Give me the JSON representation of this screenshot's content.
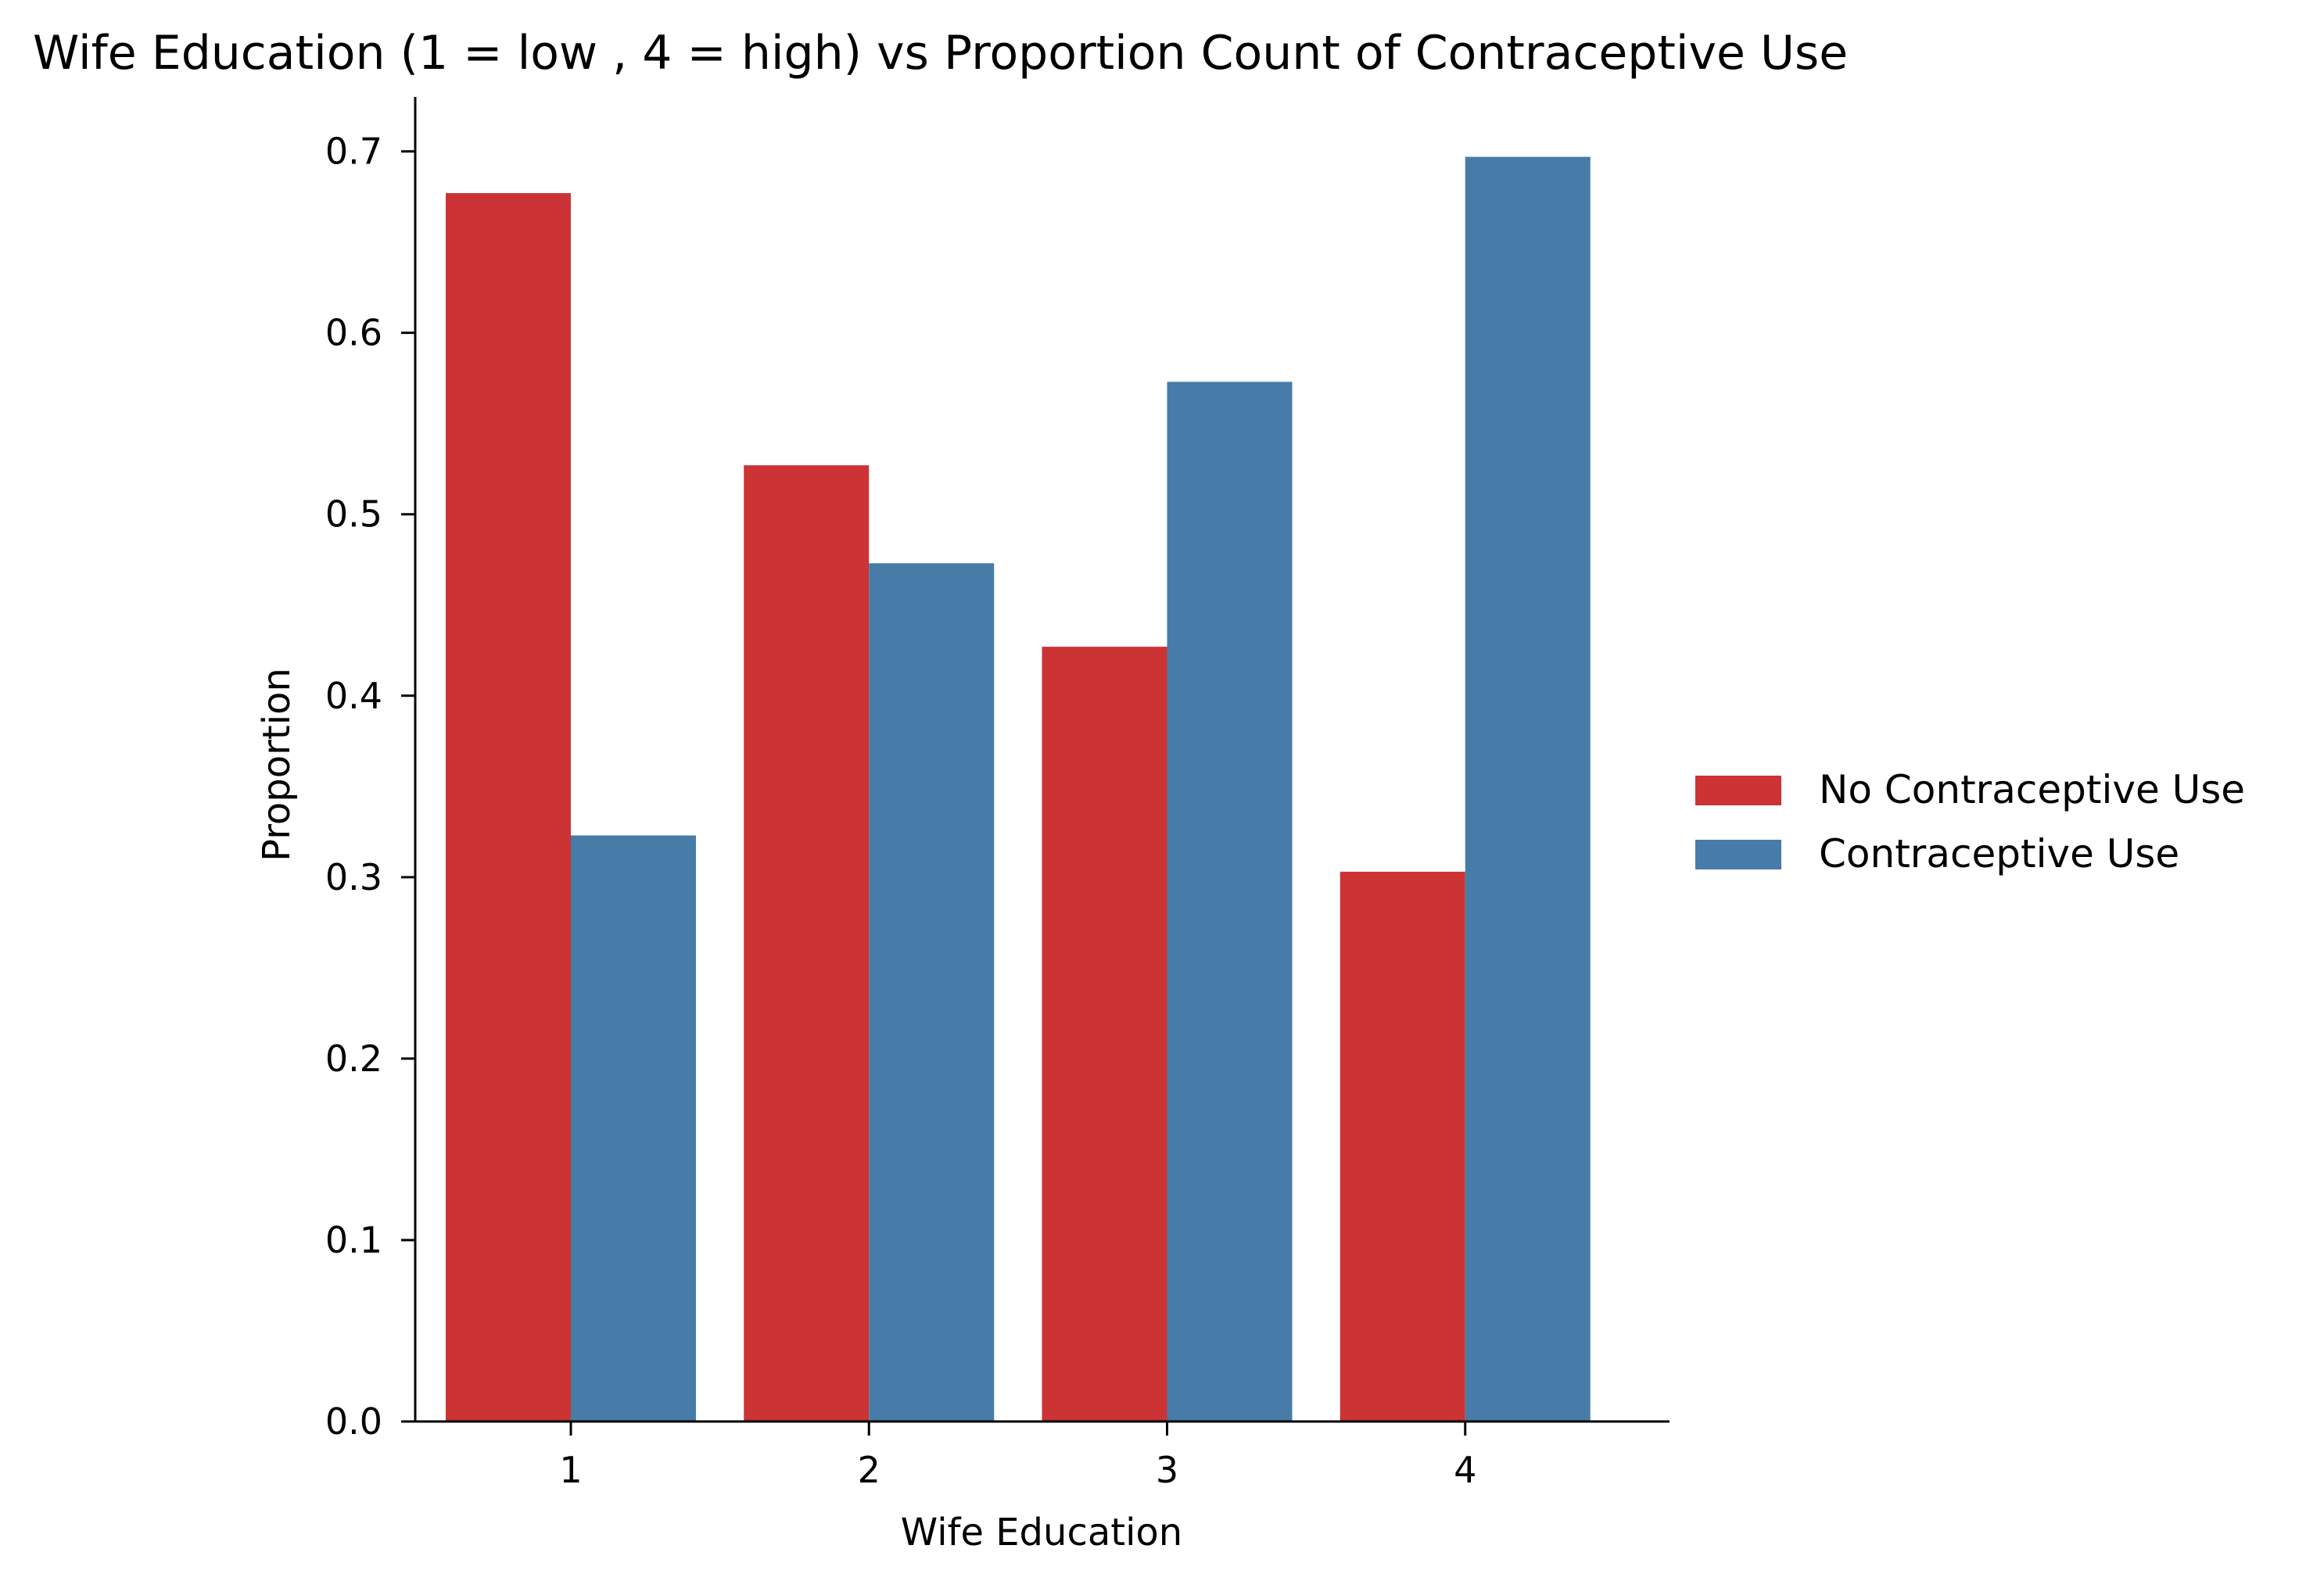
{
  "chart_data": {
    "type": "bar",
    "title": "Wife Education (1 = low , 4 = high) vs Proportion Count of Contraceptive Use",
    "xlabel": "Wife Education",
    "ylabel": "Proportion",
    "categories": [
      "1",
      "2",
      "3",
      "4"
    ],
    "series": [
      {
        "name": "No Contraceptive Use",
        "color": "#cb3335",
        "values": [
          0.677,
          0.527,
          0.427,
          0.303
        ]
      },
      {
        "name": "Contraceptive Use",
        "color": "#477ca8",
        "values": [
          0.323,
          0.473,
          0.573,
          0.697
        ]
      }
    ],
    "ylim": [
      0,
      0.73
    ],
    "yticks": [
      "0.0",
      "0.1",
      "0.2",
      "0.3",
      "0.4",
      "0.5",
      "0.6",
      "0.7"
    ],
    "grid": false,
    "legend_position": "right"
  }
}
